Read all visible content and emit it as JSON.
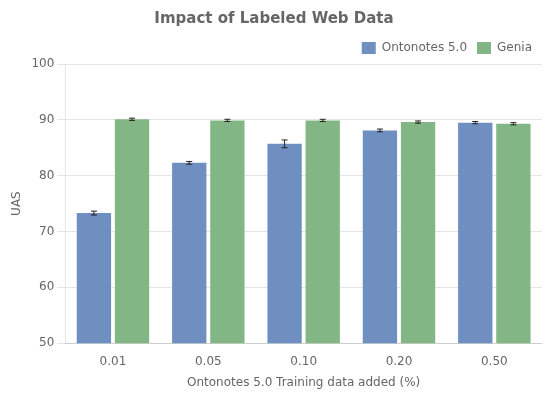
{
  "chart_data": {
    "type": "bar",
    "title": "Impact of Labeled Web Data",
    "xlabel": "Ontonotes 5.0 Training data added (%)",
    "ylabel": "UAS",
    "categories": [
      "0.01",
      "0.05",
      "0.10",
      "0.20",
      "0.50"
    ],
    "series": [
      {
        "name": "Ontonotes 5.0",
        "color": "#6e8fc0",
        "values": [
          73.3,
          82.3,
          85.7,
          88.1,
          89.5
        ],
        "errors": [
          0.35,
          0.25,
          0.7,
          0.25,
          0.2
        ]
      },
      {
        "name": "Genia",
        "color": "#82b785",
        "values": [
          90.1,
          89.9,
          89.9,
          89.6,
          89.3
        ],
        "errors": [
          0.2,
          0.2,
          0.2,
          0.2,
          0.2
        ]
      }
    ],
    "ylim": [
      50,
      100
    ],
    "yticks": [
      50,
      60,
      70,
      80,
      90,
      100
    ],
    "grid": true,
    "legend": "upper right"
  }
}
